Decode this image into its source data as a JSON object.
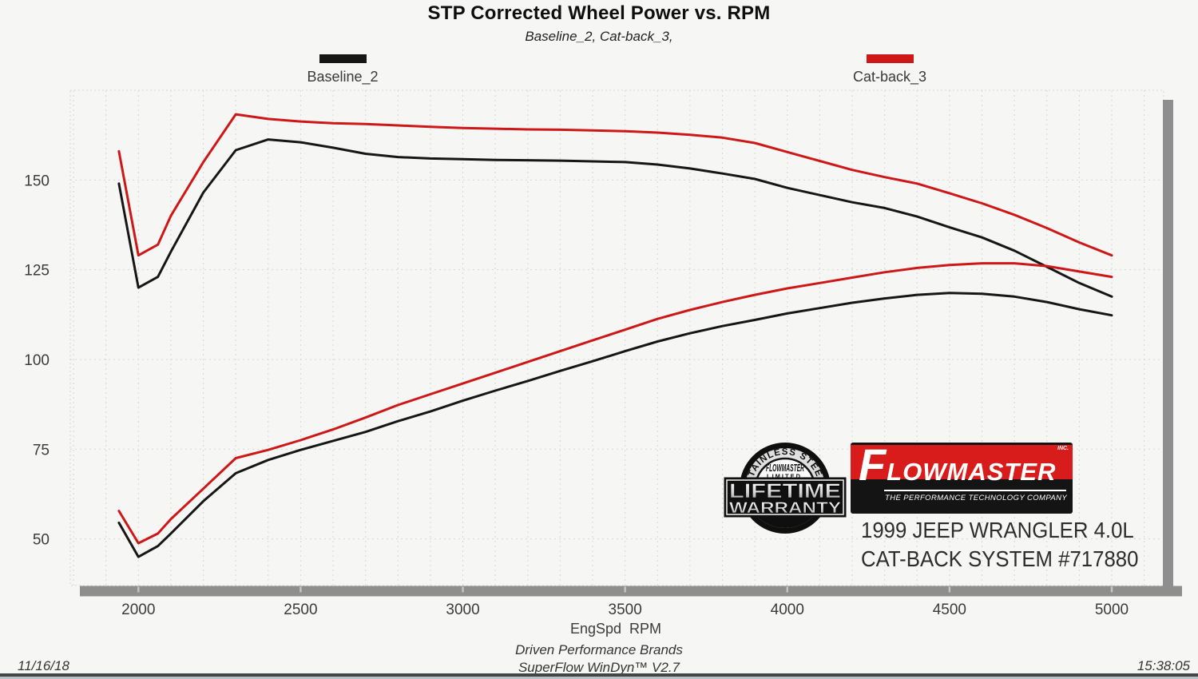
{
  "header": {
    "title": "STP Corrected Wheel Power vs. RPM",
    "subtitle": "Baseline_2,  Cat-back_3,"
  },
  "chart_data": {
    "type": "line",
    "title": "STP Corrected Wheel Power vs. RPM",
    "subtitle": "Baseline_2,  Cat-back_3,",
    "xlabel": "EngSpd  RPM",
    "ylabel": "",
    "xlim": [
      1790,
      5160
    ],
    "ylim": [
      37,
      175
    ],
    "x_ticks": [
      2000,
      2500,
      3000,
      3500,
      4000,
      4500,
      5000
    ],
    "y_ticks": [
      50,
      75,
      100,
      125,
      150
    ],
    "grid": {
      "vertical_step_rpm": 100,
      "horizontal_lines": [
        50,
        75,
        100,
        125,
        150
      ]
    },
    "legend_position": "top",
    "rpm": [
      1940,
      2000,
      2060,
      2100,
      2200,
      2300,
      2400,
      2500,
      2600,
      2700,
      2800,
      2900,
      3000,
      3100,
      3200,
      3300,
      3400,
      3500,
      3600,
      3700,
      3800,
      3900,
      4000,
      4100,
      4200,
      4300,
      4400,
      4500,
      4600,
      4700,
      4800,
      4900,
      5000
    ],
    "series": [
      {
        "name": "Baseline_2",
        "color": "#161616",
        "curves": {
          "torque": [
            149,
            120,
            123,
            130,
            146.5,
            158.3,
            161.3,
            160.5,
            159,
            157.3,
            156.4,
            156,
            155.8,
            155.6,
            155.5,
            155.4,
            155.2,
            155,
            154.3,
            153.2,
            151.8,
            150.3,
            147.8,
            145.8,
            143.8,
            142.2,
            139.8,
            136.8,
            134,
            130.3,
            125.8,
            121.3,
            117.5
          ],
          "power": [
            54.5,
            45,
            48,
            51.5,
            60.5,
            68.3,
            72,
            74.8,
            77.3,
            79.8,
            82.8,
            85.5,
            88.5,
            91.3,
            94,
            96.8,
            99.5,
            102.3,
            105,
            107.3,
            109.3,
            111,
            112.8,
            114.3,
            115.8,
            117,
            118,
            118.5,
            118.3,
            117.5,
            116,
            114,
            112.3
          ]
        }
      },
      {
        "name": "Cat-back_3",
        "color": "#ce1717",
        "curves": {
          "torque": [
            158,
            129,
            132,
            140,
            155,
            168.3,
            167,
            166.3,
            165.8,
            165.6,
            165.2,
            164.8,
            164.5,
            164.3,
            164.1,
            164,
            163.8,
            163.6,
            163.2,
            162.6,
            161.8,
            160.3,
            157.8,
            155.3,
            152.8,
            150.8,
            149,
            146.3,
            143.5,
            140.3,
            136.6,
            132.6,
            129
          ],
          "power": [
            57.8,
            48.8,
            51.5,
            55.5,
            64,
            72.5,
            74.8,
            77.5,
            80.5,
            83.8,
            87.3,
            90.3,
            93.3,
            96.3,
            99.3,
            102.3,
            105.3,
            108.3,
            111.3,
            113.8,
            116,
            118,
            119.8,
            121.3,
            122.8,
            124.3,
            125.5,
            126.3,
            126.8,
            126.8,
            126,
            124.5,
            123
          ]
        }
      }
    ]
  },
  "branding": {
    "badge": {
      "arc_text": "STAINLESS STEEL",
      "brand": "FLOWMASTER",
      "limited": "LIMITED",
      "line1": "LIFETIME",
      "line2": "WARRANTY"
    },
    "logo": {
      "brand_initial": "F",
      "brand_rest": "LOWMASTER",
      "inc": "INC.",
      "tagline": "THE PERFORMANCE TECHNOLOGY COMPANY"
    },
    "vehicle_line1": "1999 JEEP WRANGLER 4.0L",
    "vehicle_line2": "CAT-BACK SYSTEM #717880"
  },
  "footer": {
    "brand_line": "Driven Performance Brands",
    "software_line": "SuperFlow WinDyn™  V2.7",
    "date": "11/16/18",
    "time": "15:38:05"
  }
}
